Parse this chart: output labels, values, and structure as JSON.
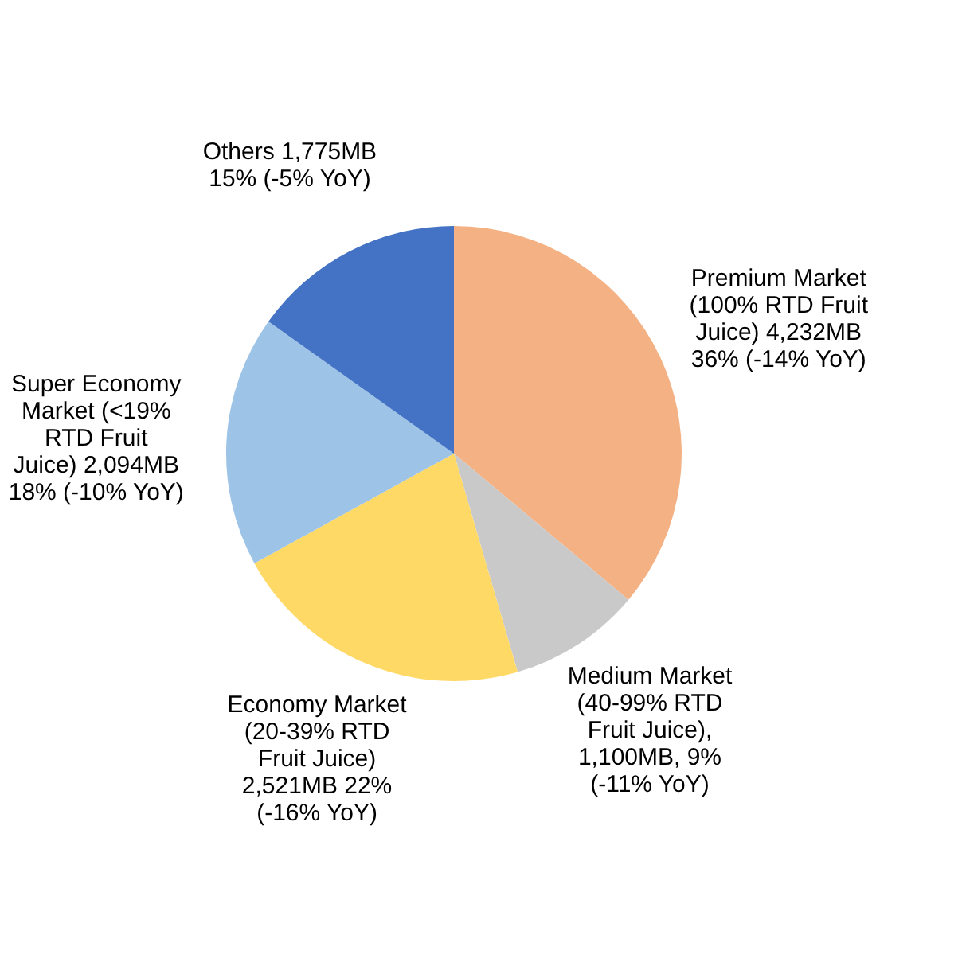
{
  "chart_data": {
    "type": "pie",
    "categories": [
      "Premium Market (100% RTD Fruit Juice)",
      "Medium Market (40-99% RTD Fruit Juice)",
      "Economy Market (20-39% RTD Fruit Juice)",
      "Super Economy Market (<19% RTD Fruit Juice)",
      "Others"
    ],
    "values": [
      4232,
      1100,
      2521,
      2094,
      1775
    ],
    "value_labels": [
      "4,232MB 36% (-14% YoY)",
      ", 1,100MB, 9% (-11% YoY)",
      "2,521MB 22% (-16% YoY)",
      "2,094MB 18% (-10% YoY)",
      "1,775MB 15% (-5% YoY)"
    ],
    "colors": [
      "#f4b183",
      "#c9c9c9",
      "#ffd966",
      "#9dc3e6",
      "#4472c4"
    ],
    "legend": false
  }
}
